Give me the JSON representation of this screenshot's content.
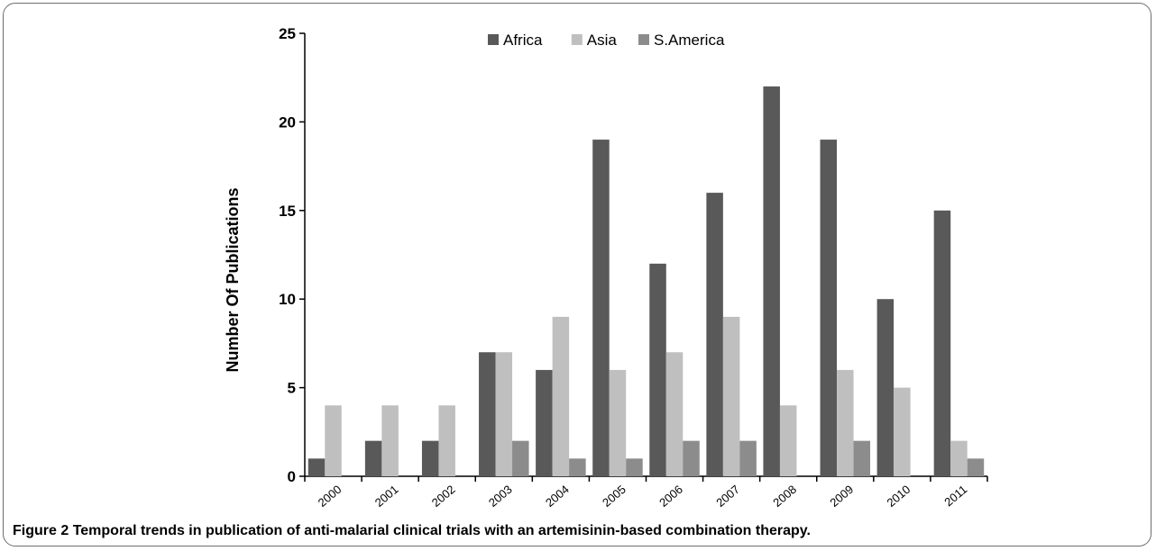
{
  "chart_data": {
    "type": "bar",
    "categories": [
      "2000",
      "2001",
      "2002",
      "2003",
      "2004",
      "2005",
      "2006",
      "2007",
      "2008",
      "2009",
      "2010",
      "2011"
    ],
    "series": [
      {
        "name": "Africa",
        "color": "#595959",
        "values": [
          1,
          2,
          2,
          7,
          6,
          19,
          12,
          16,
          22,
          19,
          10,
          15
        ]
      },
      {
        "name": "Asia",
        "color": "#bfbfbf",
        "values": [
          4,
          4,
          4,
          7,
          9,
          6,
          7,
          9,
          4,
          6,
          5,
          2
        ]
      },
      {
        "name": "S.America",
        "color": "#8c8c8c",
        "values": [
          0,
          0,
          0,
          2,
          1,
          1,
          2,
          2,
          0,
          2,
          0,
          1
        ]
      }
    ],
    "ylabel": "Number Of Publications",
    "xlabel": "",
    "ylim": [
      0,
      25
    ],
    "yticks": [
      0,
      5,
      10,
      15,
      20,
      25
    ],
    "legend_position": "top",
    "grid": false
  },
  "caption": {
    "label": "Figure 2",
    "text": "Temporal trends in publication of anti-malarial clinical trials with an artemisinin-based combination therapy."
  }
}
